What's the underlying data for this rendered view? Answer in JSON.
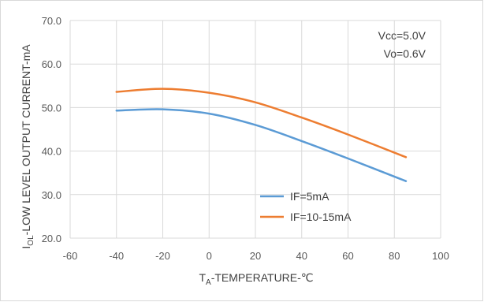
{
  "chart_data": {
    "type": "line",
    "xlabel": {
      "main": "T",
      "sub": "A",
      "rest": "-TEMPERATURE-℃"
    },
    "ylabel": {
      "main": "I",
      "sub": "OL",
      "rest": "-LOW LEVEL OUTPUT CURRENT-mA"
    },
    "xlim": [
      -60,
      100
    ],
    "ylim": [
      20,
      70
    ],
    "x_ticks": [
      -60,
      -40,
      -20,
      0,
      20,
      40,
      60,
      80,
      100
    ],
    "x_tick_labels": [
      "-60",
      "-40",
      "-20",
      "0",
      "20",
      "40",
      "60",
      "80",
      "100"
    ],
    "y_ticks": [
      20,
      30,
      40,
      50,
      60,
      70
    ],
    "y_tick_labels": [
      "20.0",
      "30.0",
      "40.0",
      "50.0",
      "60.0",
      "70.0"
    ],
    "grid": true,
    "legend_position": "bottom-right",
    "annotations": [
      "Vcc=5.0V",
      "Vo=0.6V"
    ],
    "series": [
      {
        "name": "IF=5mA",
        "color": "#5b9bd5",
        "x": [
          -40,
          -20,
          0,
          20,
          40,
          60,
          85
        ],
        "y": [
          49.3,
          49.6,
          48.6,
          46.0,
          42.3,
          38.3,
          33.1
        ]
      },
      {
        "name": "IF=10-15mA",
        "color": "#ed7d31",
        "x": [
          -40,
          -20,
          0,
          20,
          40,
          60,
          85
        ],
        "y": [
          53.6,
          54.3,
          53.4,
          51.2,
          47.7,
          43.8,
          38.6
        ]
      }
    ]
  }
}
